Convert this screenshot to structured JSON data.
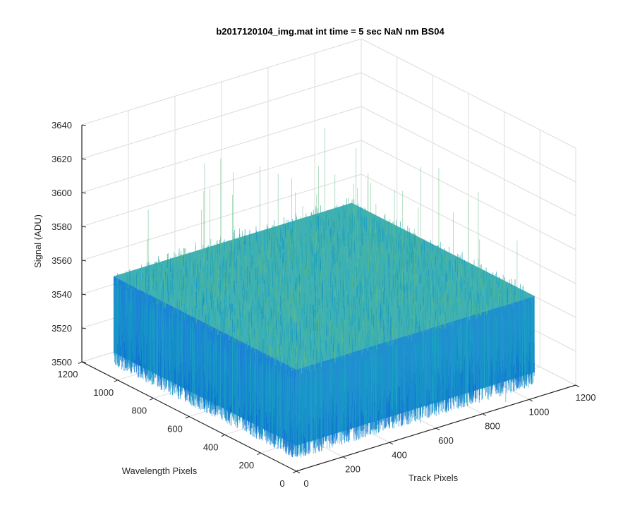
{
  "chart_data": {
    "type": "surface",
    "title": "b2017120104_img.mat int time = 5 sec  NaN nm BS04",
    "xlabel": "Track Pixels",
    "ylabel": "Wavelength Pixels",
    "zlabel": "Signal (ADU)",
    "xlim": [
      0,
      1200
    ],
    "ylim": [
      0,
      1200
    ],
    "zlim": [
      3500,
      3640
    ],
    "x_ticks": [
      "0",
      "200",
      "400",
      "600",
      "800",
      "1000",
      "1200"
    ],
    "y_ticks": [
      "0",
      "200",
      "400",
      "600",
      "800",
      "1000",
      "1200"
    ],
    "z_ticks": [
      "3500",
      "3520",
      "3540",
      "3560",
      "3580",
      "3600",
      "3620",
      "3640"
    ],
    "grid": true,
    "data_extent": {
      "x": [
        1,
        1024
      ],
      "y": [
        1,
        1024
      ]
    },
    "signal_summary": {
      "mean": 3538,
      "typical_min": 3515,
      "typical_max": 3560,
      "spike_max": 3620,
      "spike_min": 3500
    },
    "colormap": {
      "low": "#0a5fd6",
      "mid": "#1aa6c2",
      "high": "#7fc66b"
    }
  }
}
